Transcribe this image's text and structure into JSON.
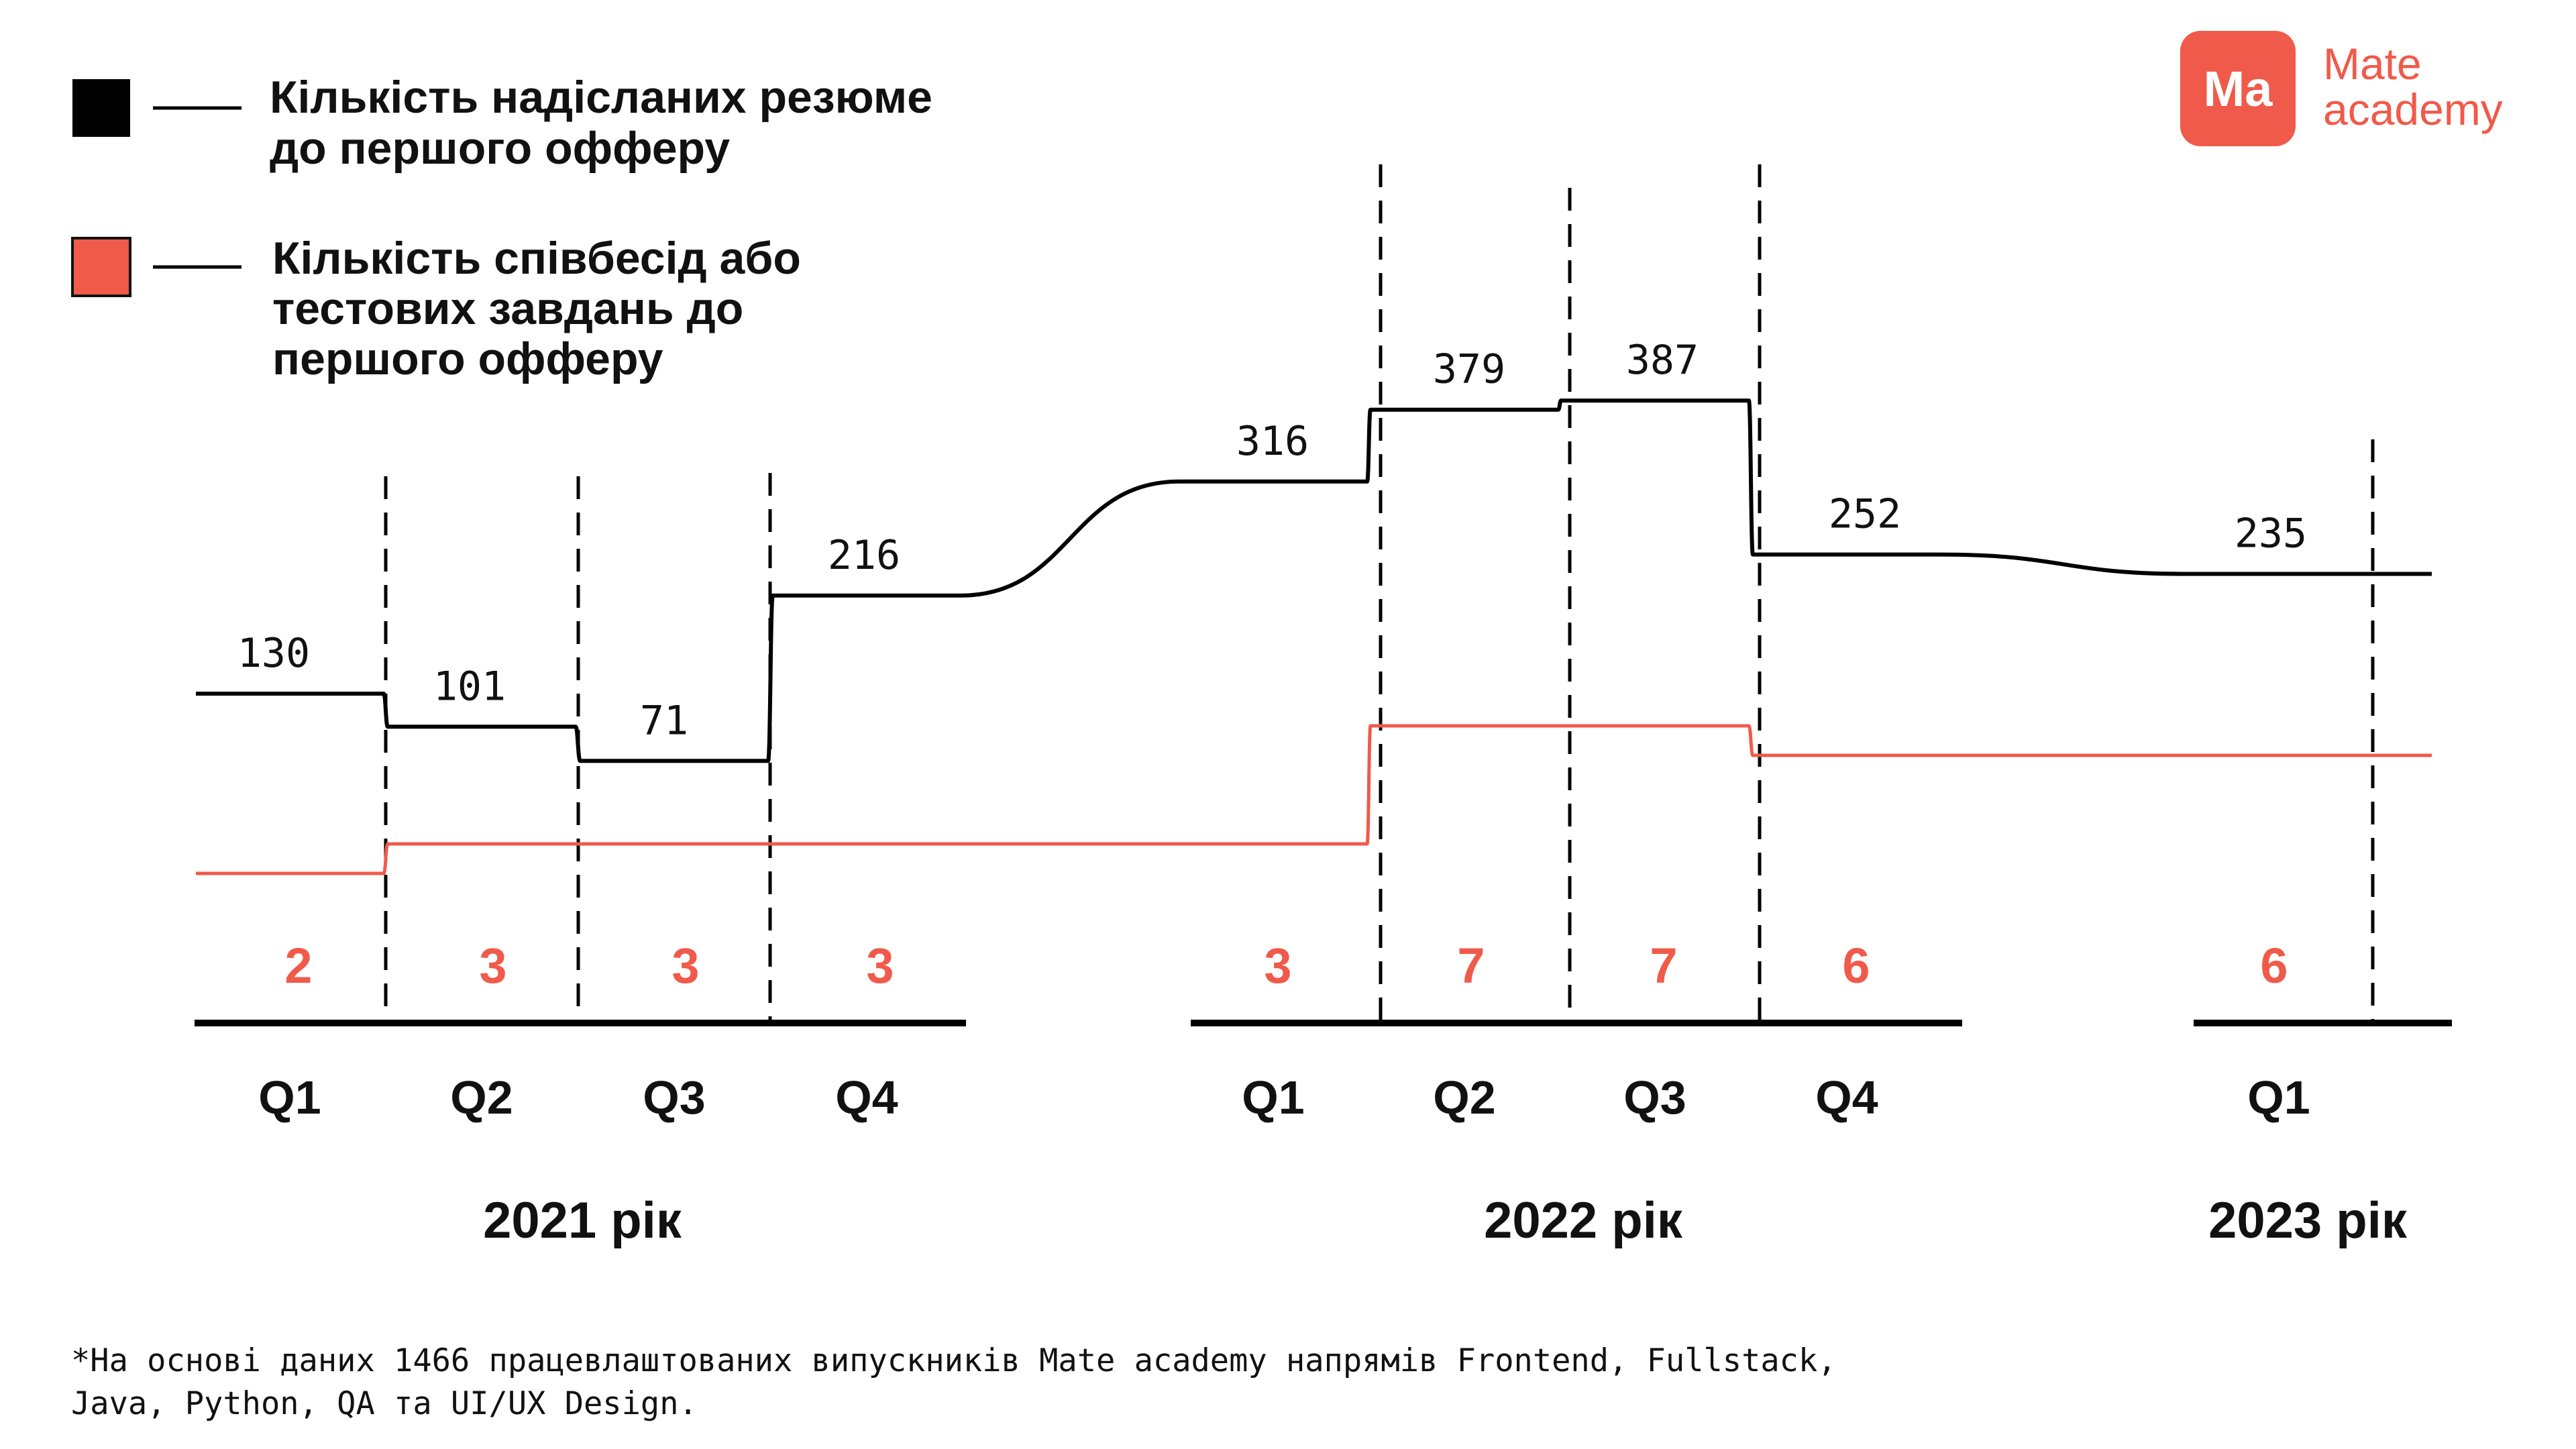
{
  "brand": {
    "logo_mark": "Ma",
    "name_line1": "Mate",
    "name_line2": "academy",
    "color": "#F05A4A"
  },
  "legend": [
    {
      "swatch_color": "#000000",
      "lines": [
        "Кількість надісланих резюме",
        "до першого офферу"
      ]
    },
    {
      "swatch_color": "#F05A4A",
      "lines": [
        "Кількість співбесід або",
        "тестових завдань до",
        "першого офферу"
      ]
    }
  ],
  "footnote": [
    "*На основі даних 1466 працевлаштованих випускників Mate academy напрямів Frontend, Fullstack,",
    "Java, Python, QA та UI/UX Design."
  ],
  "chart_data": {
    "type": "line",
    "legend_position": "top-left",
    "grid": false,
    "categories": [
      {
        "quarter": "Q1",
        "year": "2021 рік"
      },
      {
        "quarter": "Q2",
        "year": "2021 рік"
      },
      {
        "quarter": "Q3",
        "year": "2021 рік"
      },
      {
        "quarter": "Q4",
        "year": "2021 рік"
      },
      {
        "quarter": "Q1",
        "year": "2022 рік"
      },
      {
        "quarter": "Q2",
        "year": "2022 рік"
      },
      {
        "quarter": "Q3",
        "year": "2022 рік"
      },
      {
        "quarter": "Q4",
        "year": "2022 рік"
      },
      {
        "quarter": "Q1",
        "year": "2023 рік"
      }
    ],
    "years": [
      "2021 рік",
      "2022 рік",
      "2023 рік"
    ],
    "series": [
      {
        "color": "#000000",
        "values": [
          130,
          101,
          71,
          216,
          316,
          379,
          387,
          252,
          235
        ]
      },
      {
        "color": "#F05A4A",
        "values": [
          2,
          3,
          3,
          3,
          3,
          7,
          7,
          6,
          6
        ]
      }
    ]
  }
}
